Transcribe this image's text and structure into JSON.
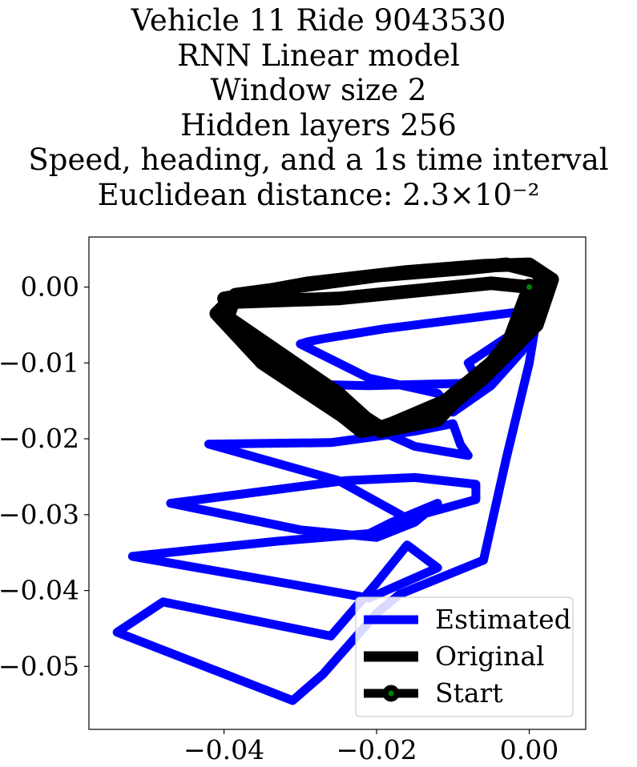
{
  "chart_data": {
    "type": "line",
    "title_lines": [
      "Vehicle 11 Ride 9043530",
      "RNN Linear model",
      "Window size 2",
      "Hidden layers 256",
      "Speed, heading, and a 1s time interval",
      "Euclidean distance: 2.3×10⁻²"
    ],
    "xlabel": "",
    "ylabel": "",
    "xlim": [
      -0.0577,
      0.0074
    ],
    "ylim": [
      -0.0583,
      0.0066
    ],
    "x_ticks": [
      -0.04,
      -0.02,
      0.0
    ],
    "x_tick_labels": [
      "−0.04",
      "−0.02",
      "0.00"
    ],
    "y_ticks": [
      0.0,
      -0.01,
      -0.02,
      -0.03,
      -0.04,
      -0.05
    ],
    "y_tick_labels": [
      "0.00",
      "−0.01",
      "−0.02",
      "−0.03",
      "−0.04",
      "−0.05"
    ],
    "grid": false,
    "legend_position": "lower-right",
    "series": [
      {
        "name": "Estimated",
        "color": "#0000ff",
        "x": [
          0.0,
          -0.019,
          -0.027,
          -0.029,
          -0.03,
          -0.025,
          -0.021,
          -0.012,
          -0.01,
          -0.005,
          -0.001,
          0.001,
          0.0,
          -0.002,
          -0.008,
          -0.007,
          -0.009,
          -0.021,
          -0.03,
          -0.025,
          -0.015,
          -0.008,
          -0.009,
          -0.01,
          -0.015,
          -0.026,
          -0.042,
          -0.025,
          -0.016,
          -0.007,
          -0.007,
          -0.015,
          -0.024,
          -0.047,
          -0.03,
          -0.02,
          -0.015,
          -0.012,
          -0.018,
          -0.021,
          -0.033,
          -0.052,
          -0.031,
          -0.021,
          -0.012,
          -0.016,
          -0.02,
          -0.026,
          -0.048,
          -0.054,
          -0.031,
          -0.027,
          -0.02,
          -0.017,
          -0.006,
          -0.003,
          0.0,
          0.001,
          0.0
        ],
        "y": [
          -0.0031,
          -0.0055,
          -0.0068,
          -0.0072,
          -0.0075,
          -0.01,
          -0.012,
          -0.014,
          -0.0165,
          -0.013,
          -0.0085,
          -0.0045,
          -0.0032,
          -0.006,
          -0.01,
          -0.0118,
          -0.0127,
          -0.013,
          -0.0128,
          -0.0165,
          -0.021,
          -0.0222,
          -0.0208,
          -0.018,
          -0.019,
          -0.0205,
          -0.0207,
          -0.0255,
          -0.0305,
          -0.028,
          -0.026,
          -0.0251,
          -0.0255,
          -0.0285,
          -0.032,
          -0.033,
          -0.031,
          -0.0285,
          -0.031,
          -0.0325,
          -0.0335,
          -0.0355,
          -0.0392,
          -0.041,
          -0.037,
          -0.034,
          -0.039,
          -0.046,
          -0.0415,
          -0.0455,
          -0.0545,
          -0.051,
          -0.043,
          -0.0405,
          -0.036,
          -0.0225,
          -0.01,
          -0.004,
          0.0
        ]
      },
      {
        "name": "Original",
        "color": "#000000",
        "x": [
          0.0,
          -0.005,
          -0.015,
          -0.025,
          -0.0395,
          -0.041,
          -0.035,
          -0.0245,
          -0.022,
          -0.012,
          -0.006,
          0.001,
          0.003,
          0.0,
          -0.006,
          -0.016,
          -0.029,
          -0.04,
          -0.039,
          -0.028,
          -0.0195,
          -0.018,
          -0.011,
          -0.005,
          -0.001,
          0.002,
          0.001,
          -0.003,
          -0.008,
          -0.02,
          -0.0385,
          -0.0395,
          -0.025,
          -0.0195,
          -0.012,
          -0.003,
          0.0
        ],
        "y": [
          0.0,
          0.0005,
          -0.0005,
          -0.0015,
          -0.002,
          -0.0035,
          -0.01,
          -0.017,
          -0.019,
          -0.017,
          -0.012,
          -0.005,
          0.001,
          0.003,
          0.0028,
          0.002,
          0.0005,
          -0.0015,
          -0.005,
          -0.013,
          -0.0185,
          -0.018,
          -0.015,
          -0.01,
          -0.005,
          0.0,
          0.002,
          0.003,
          0.0025,
          0.0015,
          -0.001,
          -0.004,
          -0.014,
          -0.019,
          -0.0175,
          -0.008,
          0.0
        ]
      },
      {
        "name": "Start",
        "color": "#008000",
        "edge_color": "#000000",
        "x": [
          0.0
        ],
        "y": [
          0.0
        ]
      }
    ]
  }
}
